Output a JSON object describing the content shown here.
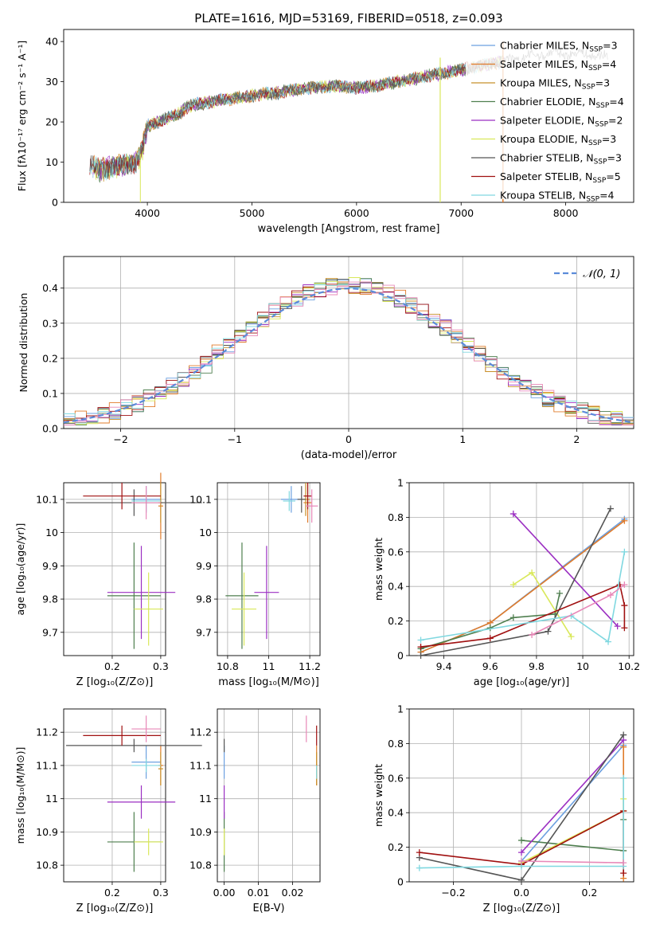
{
  "palette": {
    "Chabrier MILES": "#6ca0e0",
    "Salpeter MILES": "#e07b2a",
    "Kroupa MILES": "#c8902a",
    "Chabrier ELODIE": "#4f7f4f",
    "Salpeter ELODIE": "#9b2fc2",
    "Kroupa ELODIE": "#d9e85a",
    "Chabrier STELIB": "#555555",
    "Salpeter STELIB": "#a01010",
    "Kroupa STELIB": "#80d8e0",
    "Extra": "#e888b8",
    "Normal": "#5b8bd9"
  },
  "chart_data": [
    {
      "id": "spectrum",
      "type": "line",
      "title": "PLATE=1616, MJD=53169, FIBERID=0518, z=0.093",
      "xlabel": "wavelength [Angstrom, rest frame]",
      "ylabel": "Flux [fλ10⁻¹⁷ erg cm⁻² s⁻¹ A⁻¹]",
      "xlim": [
        3200,
        8650
      ],
      "ylim": [
        0,
        43
      ],
      "xticks": [
        "4000",
        "5000",
        "6000",
        "7000",
        "8000"
      ],
      "yticks": [
        "0",
        "10",
        "20",
        "30",
        "40"
      ],
      "legend_position": "top-right",
      "legend": [
        {
          "label": "Chabrier MILES, N",
          "sub": "SSP",
          "tail": "=3",
          "color": "Chabrier MILES"
        },
        {
          "label": "Salpeter MILES, N",
          "sub": "SSP",
          "tail": "=4",
          "color": "Salpeter MILES"
        },
        {
          "label": "Kroupa MILES, N",
          "sub": "SSP",
          "tail": "=3",
          "color": "Kroupa MILES"
        },
        {
          "label": "Chabrier ELODIE, N",
          "sub": "SSP",
          "tail": "=4",
          "color": "Chabrier ELODIE"
        },
        {
          "label": "Salpeter ELODIE, N",
          "sub": "SSP",
          "tail": "=2",
          "color": "Salpeter ELODIE"
        },
        {
          "label": "Kroupa ELODIE, N",
          "sub": "SSP",
          "tail": "=3",
          "color": "Kroupa ELODIE"
        },
        {
          "label": "Chabrier STELIB, N",
          "sub": "SSP",
          "tail": "=3",
          "color": "Chabrier STELIB"
        },
        {
          "label": "Salpeter STELIB, N",
          "sub": "SSP",
          "tail": "=5",
          "color": "Salpeter STELIB"
        },
        {
          "label": "Kroupa STELIB, N",
          "sub": "SSP",
          "tail": "=4",
          "color": "Kroupa STELIB"
        }
      ],
      "continuum": [
        [
          3450,
          9
        ],
        [
          3550,
          8
        ],
        [
          3700,
          9
        ],
        [
          3800,
          9.5
        ],
        [
          3900,
          10
        ],
        [
          3950,
          13
        ],
        [
          4000,
          19
        ],
        [
          4100,
          20
        ],
        [
          4200,
          21
        ],
        [
          4300,
          22
        ],
        [
          4400,
          24
        ],
        [
          4500,
          24.5
        ],
        [
          4700,
          25.5
        ],
        [
          4900,
          26
        ],
        [
          5000,
          26.5
        ],
        [
          5100,
          27
        ],
        [
          5200,
          27
        ],
        [
          5300,
          27.5
        ],
        [
          5400,
          28
        ],
        [
          5600,
          28.5
        ],
        [
          5800,
          29
        ],
        [
          6000,
          28.5
        ],
        [
          6200,
          29
        ],
        [
          6400,
          30
        ],
        [
          6600,
          31
        ],
        [
          6800,
          32
        ],
        [
          7000,
          33
        ],
        [
          7200,
          34
        ],
        [
          7400,
          35
        ],
        [
          7600,
          36
        ],
        [
          7800,
          37
        ],
        [
          8000,
          37
        ],
        [
          8200,
          37
        ],
        [
          8400,
          36
        ]
      ],
      "features": [
        {
          "x": 3933,
          "y": 0
        },
        {
          "x": 6800,
          "y": 0
        },
        {
          "x": 7400,
          "y": 0
        },
        {
          "x": 3520,
          "y": 2
        }
      ]
    },
    {
      "id": "residuals",
      "type": "bar",
      "xlabel": "(data-model)/error",
      "ylabel": "Normed distribution",
      "xlim": [
        -2.5,
        2.5
      ],
      "ylim": [
        0,
        0.49
      ],
      "xticks": [
        "−2",
        "−1",
        "0",
        "1",
        "2"
      ],
      "yticks": [
        "0.0",
        "0.1",
        "0.2",
        "0.3",
        "0.4"
      ],
      "legend": "𝒩(0, 1)",
      "legend_position": "top-right",
      "normal": {
        "mean": 0,
        "sd": 1
      }
    },
    {
      "id": "age_vs_z",
      "type": "scatter",
      "xlabel": "Z [log₁₀(Z/Z⊙)]",
      "ylabel": "age  [log₁₀(age/yr)]",
      "xlim": [
        0.1,
        0.31
      ],
      "ylim": [
        9.63,
        10.15
      ],
      "xticks": [
        0.2,
        0.3
      ],
      "yticks": [
        9.7,
        9.8,
        9.9,
        10.0,
        10.1
      ],
      "points": [
        {
          "x": 0.27,
          "y": 10.1,
          "ex": 0.03,
          "ey": 0.04,
          "c": "Chabrier MILES"
        },
        {
          "x": 0.3,
          "y": 10.08,
          "ex": 0.005,
          "ey": 0.1,
          "c": "Salpeter MILES"
        },
        {
          "x": 0.3,
          "y": 10.09,
          "ex": 0.005,
          "ey": 0.06,
          "c": "Kroupa MILES"
        },
        {
          "x": 0.245,
          "y": 9.81,
          "ex": 0.055,
          "ey": 0.16,
          "c": "Chabrier ELODIE"
        },
        {
          "x": 0.26,
          "y": 9.82,
          "ex": 0.07,
          "ey": 0.14,
          "c": "Salpeter ELODIE"
        },
        {
          "x": 0.275,
          "y": 9.77,
          "ex": 0.03,
          "ey": 0.11,
          "c": "Kroupa ELODIE"
        },
        {
          "x": 0.245,
          "y": 10.09,
          "ex": 0.14,
          "ey": 0.04,
          "c": "Chabrier STELIB"
        },
        {
          "x": 0.22,
          "y": 10.11,
          "ex": 0.08,
          "ey": 0.04,
          "c": "Salpeter STELIB"
        },
        {
          "x": 0.27,
          "y": 10.095,
          "ex": 0.03,
          "ey": 0.03,
          "c": "Kroupa STELIB"
        },
        {
          "x": 0.27,
          "y": 10.09,
          "ex": 0.03,
          "ey": 0.05,
          "c": "Extra"
        }
      ]
    },
    {
      "id": "age_vs_mass",
      "type": "scatter",
      "xlabel": "mass [log₁₀(M/M⊙)]",
      "ylabel": "",
      "xlim": [
        10.75,
        11.25
      ],
      "ylim": [
        9.63,
        10.15
      ],
      "xticks": [
        10.8,
        11.0,
        11.2
      ],
      "yticks": [
        9.7,
        9.8,
        9.9,
        10.0,
        10.1
      ],
      "points": [
        {
          "x": 11.11,
          "y": 10.1,
          "ex": 0.05,
          "ey": 0.04,
          "c": "Chabrier MILES"
        },
        {
          "x": 11.19,
          "y": 10.09,
          "ex": 0.02,
          "ey": 0.06,
          "c": "Salpeter MILES"
        },
        {
          "x": 11.18,
          "y": 10.1,
          "ex": 0.02,
          "ey": 0.05,
          "c": "Kroupa MILES"
        },
        {
          "x": 10.87,
          "y": 9.81,
          "ex": 0.08,
          "ey": 0.16,
          "c": "Chabrier ELODIE"
        },
        {
          "x": 10.99,
          "y": 9.82,
          "ex": 0.06,
          "ey": 0.14,
          "c": "Salpeter ELODIE"
        },
        {
          "x": 10.88,
          "y": 9.77,
          "ex": 0.06,
          "ey": 0.11,
          "c": "Kroupa ELODIE"
        },
        {
          "x": 11.16,
          "y": 10.1,
          "ex": 0.02,
          "ey": 0.04,
          "c": "Chabrier STELIB"
        },
        {
          "x": 11.19,
          "y": 10.11,
          "ex": 0.02,
          "ey": 0.04,
          "c": "Salpeter STELIB"
        },
        {
          "x": 11.1,
          "y": 10.095,
          "ex": 0.03,
          "ey": 0.03,
          "c": "Kroupa STELIB"
        },
        {
          "x": 11.21,
          "y": 10.08,
          "ex": 0.03,
          "ey": 0.05,
          "c": "Extra"
        }
      ]
    },
    {
      "id": "weight_vs_age",
      "type": "line",
      "xlabel": "age  [log₁₀(age/yr)]",
      "ylabel": "mass weight",
      "xlim": [
        9.25,
        10.22
      ],
      "ylim": [
        0,
        1.0
      ],
      "xticks": [
        9.4,
        9.6,
        9.8,
        10.0,
        10.2
      ],
      "yticks": [
        0.0,
        0.2,
        0.4,
        0.6,
        0.8,
        1.0
      ],
      "series": [
        {
          "c": "Chabrier MILES",
          "pts": [
            [
              9.3,
              0.02
            ],
            [
              9.6,
              0.19
            ],
            [
              10.18,
              0.79
            ]
          ]
        },
        {
          "c": "Salpeter MILES",
          "pts": [
            [
              9.3,
              0.02
            ],
            [
              9.6,
              0.19
            ],
            [
              10.18,
              0.78
            ]
          ]
        },
        {
          "c": "Chabrier ELODIE",
          "pts": [
            [
              9.3,
              0.04
            ],
            [
              9.6,
              0.16
            ],
            [
              9.7,
              0.22
            ],
            [
              9.88,
              0.24
            ],
            [
              9.9,
              0.36
            ]
          ]
        },
        {
          "c": "Salpeter ELODIE",
          "pts": [
            [
              9.7,
              0.82
            ],
            [
              10.15,
              0.17
            ]
          ]
        },
        {
          "c": "Kroupa ELODIE",
          "pts": [
            [
              9.7,
              0.41
            ],
            [
              9.78,
              0.48
            ],
            [
              9.95,
              0.11
            ]
          ]
        },
        {
          "c": "Chabrier STELIB",
          "pts": [
            [
              9.3,
              0.0
            ],
            [
              9.85,
              0.14
            ],
            [
              10.12,
              0.85
            ]
          ]
        },
        {
          "c": "Salpeter STELIB",
          "pts": [
            [
              9.3,
              0.05
            ],
            [
              9.6,
              0.1
            ],
            [
              10.16,
              0.41
            ],
            [
              10.18,
              0.29
            ],
            [
              10.18,
              0.16
            ]
          ]
        },
        {
          "c": "Kroupa STELIB",
          "pts": [
            [
              9.3,
              0.09
            ],
            [
              9.95,
              0.23
            ],
            [
              10.11,
              0.08
            ],
            [
              10.18,
              0.6
            ]
          ]
        },
        {
          "c": "Extra",
          "pts": [
            [
              9.78,
              0.12
            ],
            [
              10.12,
              0.35
            ],
            [
              10.18,
              0.41
            ]
          ]
        }
      ]
    },
    {
      "id": "mass_vs_z",
      "type": "scatter",
      "xlabel": "Z [log₁₀(Z/Z⊙)]",
      "ylabel": "mass [log₁₀(M/M⊙)]",
      "xlim": [
        0.1,
        0.31
      ],
      "ylim": [
        10.75,
        11.27
      ],
      "xticks": [
        0.2,
        0.3
      ],
      "yticks": [
        10.8,
        10.9,
        11.0,
        11.1,
        11.2
      ],
      "points": [
        {
          "x": 0.27,
          "y": 11.11,
          "ex": 0.03,
          "ey": 0.05,
          "c": "Chabrier MILES"
        },
        {
          "x": 0.3,
          "y": 11.1,
          "ex": 0.005,
          "ey": 0.06,
          "c": "Salpeter MILES"
        },
        {
          "x": 0.3,
          "y": 11.09,
          "ex": 0.005,
          "ey": 0.05,
          "c": "Kroupa MILES"
        },
        {
          "x": 0.245,
          "y": 10.87,
          "ex": 0.055,
          "ey": 0.09,
          "c": "Chabrier ELODIE"
        },
        {
          "x": 0.26,
          "y": 10.99,
          "ex": 0.07,
          "ey": 0.05,
          "c": "Salpeter ELODIE"
        },
        {
          "x": 0.275,
          "y": 10.87,
          "ex": 0.03,
          "ey": 0.04,
          "c": "Kroupa ELODIE"
        },
        {
          "x": 0.245,
          "y": 11.16,
          "ex": 0.14,
          "ey": 0.02,
          "c": "Chabrier STELIB"
        },
        {
          "x": 0.22,
          "y": 11.19,
          "ex": 0.08,
          "ey": 0.03,
          "c": "Salpeter STELIB"
        },
        {
          "x": 0.27,
          "y": 11.1,
          "ex": 0.03,
          "ey": 0.02,
          "c": "Kroupa STELIB"
        },
        {
          "x": 0.27,
          "y": 11.21,
          "ex": 0.03,
          "ey": 0.04,
          "c": "Extra"
        }
      ]
    },
    {
      "id": "mass_vs_ebv",
      "type": "scatter",
      "xlabel": "E(B-V)",
      "ylabel": "",
      "xlim": [
        -0.002,
        0.028
      ],
      "ylim": [
        10.75,
        11.27
      ],
      "xticks": [
        "0.00",
        "0.01",
        "0.02"
      ],
      "yticks": [
        10.8,
        10.9,
        11.0,
        11.1,
        11.2
      ],
      "points": [
        {
          "x": 0.0,
          "y": 11.11,
          "ex": 0,
          "ey": 0.05,
          "c": "Chabrier MILES"
        },
        {
          "x": 0.027,
          "y": 11.1,
          "ex": 0,
          "ey": 0.06,
          "c": "Salpeter MILES"
        },
        {
          "x": 0.027,
          "y": 11.09,
          "ex": 0,
          "ey": 0.05,
          "c": "Kroupa MILES"
        },
        {
          "x": 0.0,
          "y": 10.87,
          "ex": 0,
          "ey": 0.09,
          "c": "Chabrier ELODIE"
        },
        {
          "x": 0.0,
          "y": 10.99,
          "ex": 0,
          "ey": 0.05,
          "c": "Salpeter ELODIE"
        },
        {
          "x": 0.0,
          "y": 10.87,
          "ex": 0,
          "ey": 0.04,
          "c": "Kroupa ELODIE"
        },
        {
          "x": 0.0,
          "y": 11.16,
          "ex": 0,
          "ey": 0.02,
          "c": "Chabrier STELIB"
        },
        {
          "x": 0.027,
          "y": 11.19,
          "ex": 0,
          "ey": 0.03,
          "c": "Salpeter STELIB"
        },
        {
          "x": 0.027,
          "y": 11.08,
          "ex": 0,
          "ey": 0.02,
          "c": "Kroupa STELIB"
        },
        {
          "x": 0.024,
          "y": 11.21,
          "ex": 0,
          "ey": 0.04,
          "c": "Extra"
        }
      ]
    },
    {
      "id": "weight_vs_z",
      "type": "line",
      "xlabel": "Z [log₁₀(Z/Z⊙)]",
      "ylabel": "mass weight",
      "xlim": [
        -0.33,
        0.33
      ],
      "ylim": [
        0,
        1.0
      ],
      "xticks": [
        "−0.2",
        "0.0",
        "0.2"
      ],
      "yticks": [
        0.0,
        0.2,
        0.4,
        0.6,
        0.8,
        1.0
      ],
      "series": [
        {
          "c": "Chabrier MILES",
          "pts": [
            [
              0.0,
              0.12
            ],
            [
              0.3,
              0.79
            ]
          ]
        },
        {
          "c": "Salpeter MILES",
          "pts": [
            [
              0.0,
              0.1
            ],
            [
              0.3,
              0.41
            ],
            [
              0.3,
              0.78
            ],
            [
              0.3,
              0.02
            ]
          ]
        },
        {
          "c": "Chabrier ELODIE",
          "pts": [
            [
              0.0,
              0.24
            ],
            [
              0.3,
              0.18
            ],
            [
              0.3,
              0.36
            ]
          ]
        },
        {
          "c": "Salpeter ELODIE",
          "pts": [
            [
              0.0,
              0.17
            ],
            [
              0.3,
              0.82
            ]
          ]
        },
        {
          "c": "Kroupa ELODIE",
          "pts": [
            [
              0.0,
              0.11
            ],
            [
              0.3,
              0.41
            ],
            [
              0.3,
              0.48
            ]
          ]
        },
        {
          "c": "Chabrier STELIB",
          "pts": [
            [
              -0.3,
              0.14
            ],
            [
              0.0,
              0.01
            ],
            [
              0.3,
              0.85
            ]
          ]
        },
        {
          "c": "Salpeter STELIB",
          "pts": [
            [
              -0.3,
              0.17
            ],
            [
              0.0,
              0.1
            ],
            [
              0.3,
              0.41
            ],
            [
              0.3,
              0.05
            ]
          ]
        },
        {
          "c": "Kroupa STELIB",
          "pts": [
            [
              -0.3,
              0.08
            ],
            [
              0.0,
              0.09
            ],
            [
              0.3,
              0.09
            ],
            [
              0.3,
              0.6
            ]
          ]
        },
        {
          "c": "Extra",
          "pts": [
            [
              0.0,
              0.12
            ],
            [
              0.3,
              0.11
            ]
          ]
        }
      ]
    }
  ]
}
